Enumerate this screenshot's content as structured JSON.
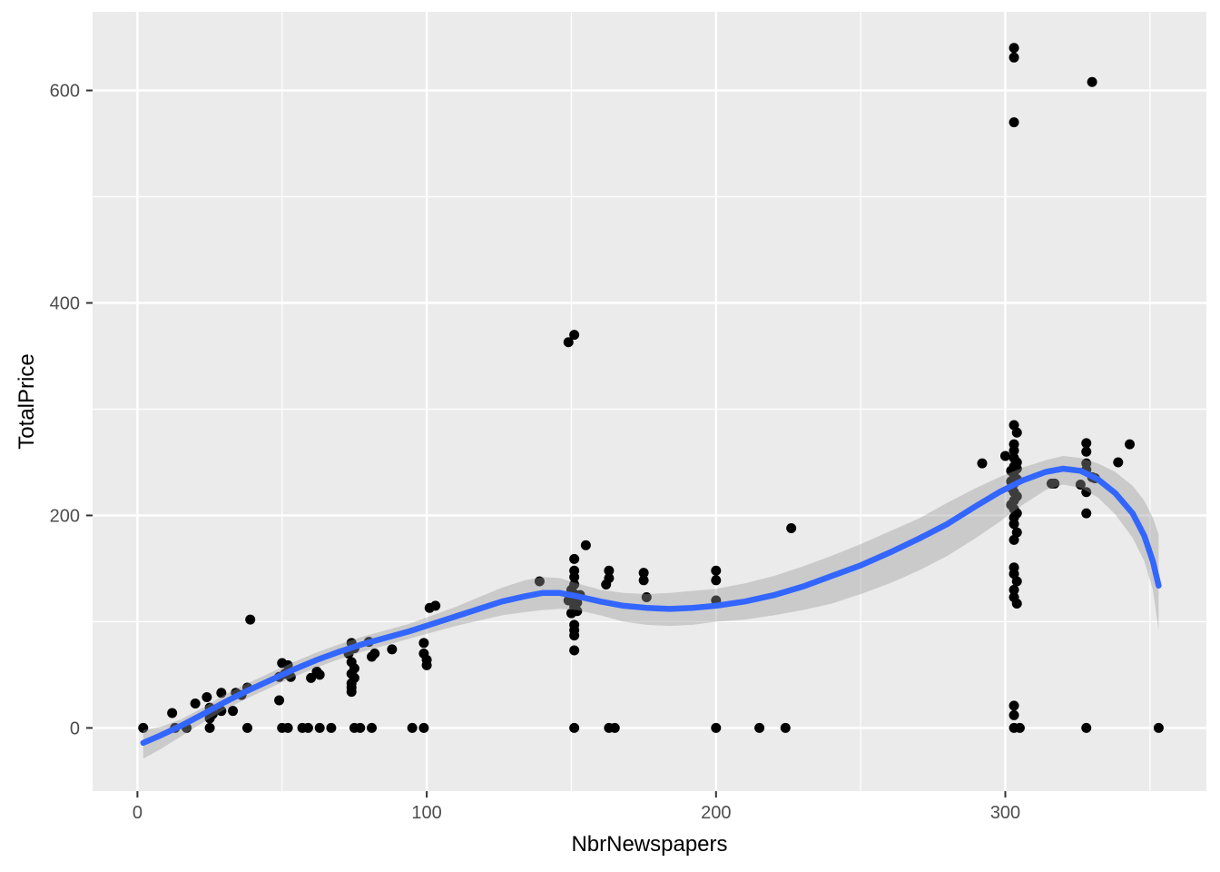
{
  "chart_data": {
    "type": "scatter",
    "title": "",
    "xlabel": "NbrNewspapers",
    "ylabel": "TotalPrice",
    "xlim": [
      -15.5,
      369.5
    ],
    "ylim": [
      -59.5,
      674
    ],
    "x_major_ticks": [
      0,
      100,
      200,
      300
    ],
    "x_minor_gridlines": [
      50,
      150,
      250,
      350
    ],
    "y_major_ticks": [
      0,
      200,
      400,
      600
    ],
    "y_minor_gridlines": [
      100,
      300,
      500
    ],
    "grid": "major-minor-white",
    "legend": "none",
    "colors": {
      "outer_background": "#FFFFFF",
      "panel_background": "#EBEBEB",
      "gridline": "#FFFFFF",
      "point": "#000000",
      "smooth_line": "#3366FF",
      "band_fill": "#999999",
      "band_opacity": 0.4,
      "tick_mark": "#333333",
      "tick_label": "#4D4D4D",
      "axis_title": "#000000"
    },
    "points": [
      [
        2,
        0
      ],
      [
        12,
        14
      ],
      [
        13,
        0
      ],
      [
        17,
        0
      ],
      [
        20,
        23
      ],
      [
        24,
        29
      ],
      [
        25,
        19
      ],
      [
        26,
        13
      ],
      [
        25,
        9
      ],
      [
        25,
        0
      ],
      [
        29,
        33
      ],
      [
        29,
        16
      ],
      [
        33,
        16
      ],
      [
        34,
        33
      ],
      [
        36,
        31
      ],
      [
        38,
        38
      ],
      [
        39,
        102
      ],
      [
        38,
        0
      ],
      [
        49,
        48
      ],
      [
        49,
        26
      ],
      [
        50,
        61
      ],
      [
        50,
        0
      ],
      [
        51,
        51
      ],
      [
        52,
        59
      ],
      [
        52,
        0
      ],
      [
        53,
        48
      ],
      [
        57,
        0
      ],
      [
        59,
        0
      ],
      [
        60,
        47
      ],
      [
        62,
        53
      ],
      [
        63,
        50
      ],
      [
        63,
        0
      ],
      [
        67,
        0
      ],
      [
        73,
        70
      ],
      [
        74,
        80
      ],
      [
        74,
        62
      ],
      [
        74,
        42
      ],
      [
        74,
        34
      ],
      [
        75,
        75
      ],
      [
        75,
        56
      ],
      [
        74,
        51
      ],
      [
        75,
        47
      ],
      [
        74,
        38
      ],
      [
        75,
        0
      ],
      [
        77,
        0
      ],
      [
        80,
        81
      ],
      [
        81,
        67
      ],
      [
        82,
        70
      ],
      [
        81,
        0
      ],
      [
        88,
        74
      ],
      [
        95,
        0
      ],
      [
        99,
        80
      ],
      [
        99,
        70
      ],
      [
        99,
        0
      ],
      [
        100,
        64
      ],
      [
        100,
        59
      ],
      [
        101,
        113
      ],
      [
        103,
        115
      ],
      [
        139,
        138
      ],
      [
        149,
        363
      ],
      [
        151,
        370
      ],
      [
        149,
        120
      ],
      [
        150,
        130
      ],
      [
        150,
        122
      ],
      [
        150,
        108
      ],
      [
        151,
        159
      ],
      [
        151,
        148
      ],
      [
        151,
        142
      ],
      [
        151,
        135
      ],
      [
        151,
        126
      ],
      [
        151,
        114
      ],
      [
        151,
        97
      ],
      [
        151,
        92
      ],
      [
        151,
        87
      ],
      [
        151,
        73
      ],
      [
        152,
        118
      ],
      [
        152,
        110
      ],
      [
        153,
        125
      ],
      [
        155,
        172
      ],
      [
        151,
        0
      ],
      [
        162,
        135
      ],
      [
        163,
        148
      ],
      [
        163,
        141
      ],
      [
        163,
        0
      ],
      [
        165,
        0
      ],
      [
        175,
        146
      ],
      [
        175,
        139
      ],
      [
        176,
        123
      ],
      [
        200,
        148
      ],
      [
        200,
        139
      ],
      [
        200,
        120
      ],
      [
        200,
        0
      ],
      [
        215,
        0
      ],
      [
        224,
        0
      ],
      [
        226,
        188
      ],
      [
        292,
        249
      ],
      [
        300,
        256
      ],
      [
        302,
        242
      ],
      [
        302,
        232
      ],
      [
        302,
        226
      ],
      [
        302,
        210
      ],
      [
        303,
        285
      ],
      [
        303,
        267
      ],
      [
        303,
        261
      ],
      [
        303,
        254
      ],
      [
        303,
        246
      ],
      [
        303,
        238
      ],
      [
        303,
        230
      ],
      [
        303,
        222
      ],
      [
        303,
        214
      ],
      [
        303,
        206
      ],
      [
        303,
        198
      ],
      [
        303,
        192
      ],
      [
        303,
        177
      ],
      [
        303,
        151
      ],
      [
        303,
        145
      ],
      [
        303,
        130
      ],
      [
        303,
        123
      ],
      [
        303,
        21
      ],
      [
        303,
        12
      ],
      [
        303,
        0
      ],
      [
        304,
        278
      ],
      [
        304,
        250
      ],
      [
        304,
        244
      ],
      [
        304,
        234
      ],
      [
        304,
        218
      ],
      [
        304,
        202
      ],
      [
        304,
        184
      ],
      [
        304,
        138
      ],
      [
        304,
        117
      ],
      [
        305,
        0
      ],
      [
        303,
        640
      ],
      [
        303,
        631
      ],
      [
        303,
        570
      ],
      [
        316,
        230
      ],
      [
        317,
        230
      ],
      [
        326,
        229
      ],
      [
        328,
        268
      ],
      [
        328,
        260
      ],
      [
        328,
        249
      ],
      [
        328,
        243
      ],
      [
        328,
        222
      ],
      [
        328,
        202
      ],
      [
        330,
        236
      ],
      [
        331,
        235
      ],
      [
        330,
        608
      ],
      [
        339,
        250
      ],
      [
        343,
        267
      ],
      [
        328,
        0
      ],
      [
        353,
        0
      ]
    ],
    "smooth_line": [
      [
        2,
        -14
      ],
      [
        8,
        -7
      ],
      [
        15,
        2
      ],
      [
        22,
        12
      ],
      [
        30,
        24
      ],
      [
        38,
        35
      ],
      [
        46,
        45
      ],
      [
        54,
        55
      ],
      [
        62,
        64
      ],
      [
        70,
        72
      ],
      [
        78,
        79
      ],
      [
        86,
        85
      ],
      [
        94,
        91
      ],
      [
        102,
        98
      ],
      [
        110,
        105
      ],
      [
        118,
        112
      ],
      [
        126,
        119
      ],
      [
        134,
        124
      ],
      [
        140,
        127
      ],
      [
        146,
        127
      ],
      [
        152,
        124
      ],
      [
        160,
        119
      ],
      [
        168,
        115
      ],
      [
        176,
        113
      ],
      [
        184,
        112
      ],
      [
        192,
        113
      ],
      [
        200,
        115
      ],
      [
        210,
        119
      ],
      [
        220,
        125
      ],
      [
        230,
        133
      ],
      [
        240,
        143
      ],
      [
        250,
        153
      ],
      [
        260,
        165
      ],
      [
        270,
        178
      ],
      [
        280,
        192
      ],
      [
        290,
        209
      ],
      [
        298,
        222
      ],
      [
        306,
        233
      ],
      [
        314,
        241
      ],
      [
        320,
        244
      ],
      [
        326,
        242
      ],
      [
        332,
        234
      ],
      [
        338,
        221
      ],
      [
        344,
        202
      ],
      [
        348,
        181
      ],
      [
        351,
        157
      ],
      [
        353,
        134
      ]
    ],
    "confidence_band": [
      [
        2,
        -29,
        -2
      ],
      [
        8,
        -20,
        1
      ],
      [
        15,
        -8,
        8
      ],
      [
        22,
        4,
        18
      ],
      [
        30,
        17,
        31
      ],
      [
        38,
        28,
        42
      ],
      [
        46,
        38,
        52
      ],
      [
        54,
        48,
        62
      ],
      [
        62,
        57,
        71
      ],
      [
        70,
        65,
        79
      ],
      [
        78,
        72,
        86
      ],
      [
        86,
        78,
        92
      ],
      [
        94,
        84,
        98
      ],
      [
        102,
        90,
        106
      ],
      [
        110,
        96,
        114
      ],
      [
        118,
        101,
        123
      ],
      [
        126,
        106,
        132
      ],
      [
        134,
        109,
        139
      ],
      [
        140,
        111,
        142
      ],
      [
        146,
        112,
        141
      ],
      [
        152,
        111,
        136
      ],
      [
        160,
        106,
        130
      ],
      [
        168,
        100,
        127
      ],
      [
        176,
        97,
        126
      ],
      [
        184,
        96,
        127
      ],
      [
        192,
        97,
        129
      ],
      [
        200,
        100,
        131
      ],
      [
        210,
        102,
        136
      ],
      [
        220,
        106,
        143
      ],
      [
        230,
        111,
        152
      ],
      [
        240,
        117,
        162
      ],
      [
        250,
        126,
        173
      ],
      [
        260,
        136,
        185
      ],
      [
        270,
        148,
        197
      ],
      [
        280,
        162,
        212
      ],
      [
        290,
        179,
        226
      ],
      [
        298,
        194,
        236
      ],
      [
        306,
        210,
        245
      ],
      [
        314,
        224,
        252
      ],
      [
        320,
        229,
        256
      ],
      [
        326,
        226,
        254
      ],
      [
        332,
        217,
        249
      ],
      [
        338,
        201,
        241
      ],
      [
        344,
        179,
        228
      ],
      [
        348,
        157,
        214
      ],
      [
        351,
        130,
        198
      ],
      [
        353,
        92,
        182
      ]
    ]
  }
}
